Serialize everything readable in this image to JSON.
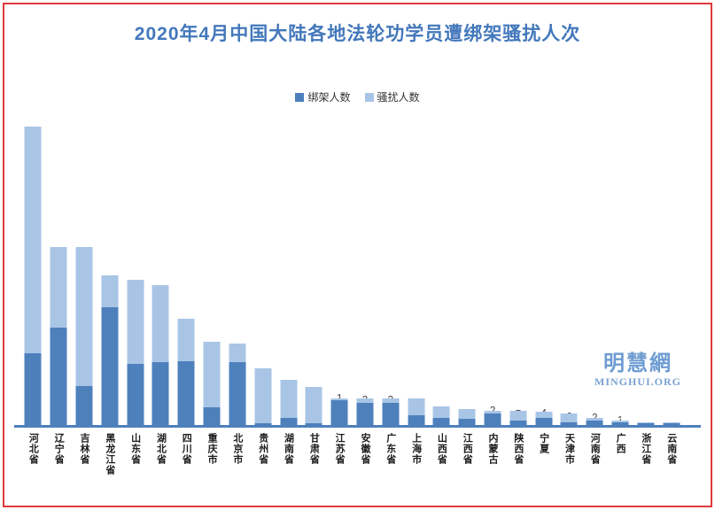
{
  "title": "2020年4月中国大陆各地法轮功学员遭绑架骚扰人次",
  "legend": {
    "items": [
      {
        "label": "绑架人数",
        "color": "#4e80bc"
      },
      {
        "label": "骚扰人数",
        "color": "#a9c5e6"
      }
    ]
  },
  "watermark": {
    "cn": "明慧網",
    "en": "MINGHUI.ORG"
  },
  "colors": {
    "kidnap_series": "#4e80bc",
    "harass_series": "#a9c5e6",
    "title_blue": "#4277bb",
    "frame_red": "#e13a3c",
    "axis_blue": "#4e80bc",
    "light_label_text": "#404040",
    "dark_label_text": "#ffffff"
  },
  "chart_data": {
    "type": "bar",
    "stacked": true,
    "title": "2020年4月中国大陆各地法轮功学员遭绑架骚扰人次",
    "xlabel": "",
    "ylabel": "",
    "ylim": [
      0,
      210
    ],
    "grid": false,
    "legend_position": "top-center",
    "data_labels": "centered-in-segment",
    "hidden_label_indices": [
      24,
      25
    ],
    "categories": [
      "河北省",
      "辽宁省",
      "吉林省",
      "黑龙江省",
      "山东省",
      "湖北省",
      "四川省",
      "重庆市",
      "北京市",
      "贵州省",
      "湖南省",
      "甘肃省",
      "江苏省",
      "安徽省",
      "广东省",
      "上海市",
      "山西省",
      "江西省",
      "内蒙古",
      "陕西省",
      "宁夏",
      "天津市",
      "河南省",
      "广西",
      "浙江省",
      "云南省"
    ],
    "series": [
      {
        "name": "绑架人数",
        "color": "#4e80bc",
        "values": [
          49,
          67,
          27,
          81,
          42,
          43,
          44,
          12,
          43,
          1,
          5,
          1,
          17,
          15,
          15,
          7,
          5,
          4,
          8,
          3,
          5,
          2,
          3,
          2,
          1,
          1
        ]
      },
      {
        "name": "骚扰人数",
        "color": "#a9c5e6",
        "values": [
          156,
          55,
          95,
          22,
          58,
          53,
          29,
          45,
          13,
          38,
          26,
          25,
          1,
          3,
          3,
          11,
          8,
          7,
          2,
          7,
          4,
          6,
          2,
          1,
          1,
          1
        ]
      }
    ]
  }
}
